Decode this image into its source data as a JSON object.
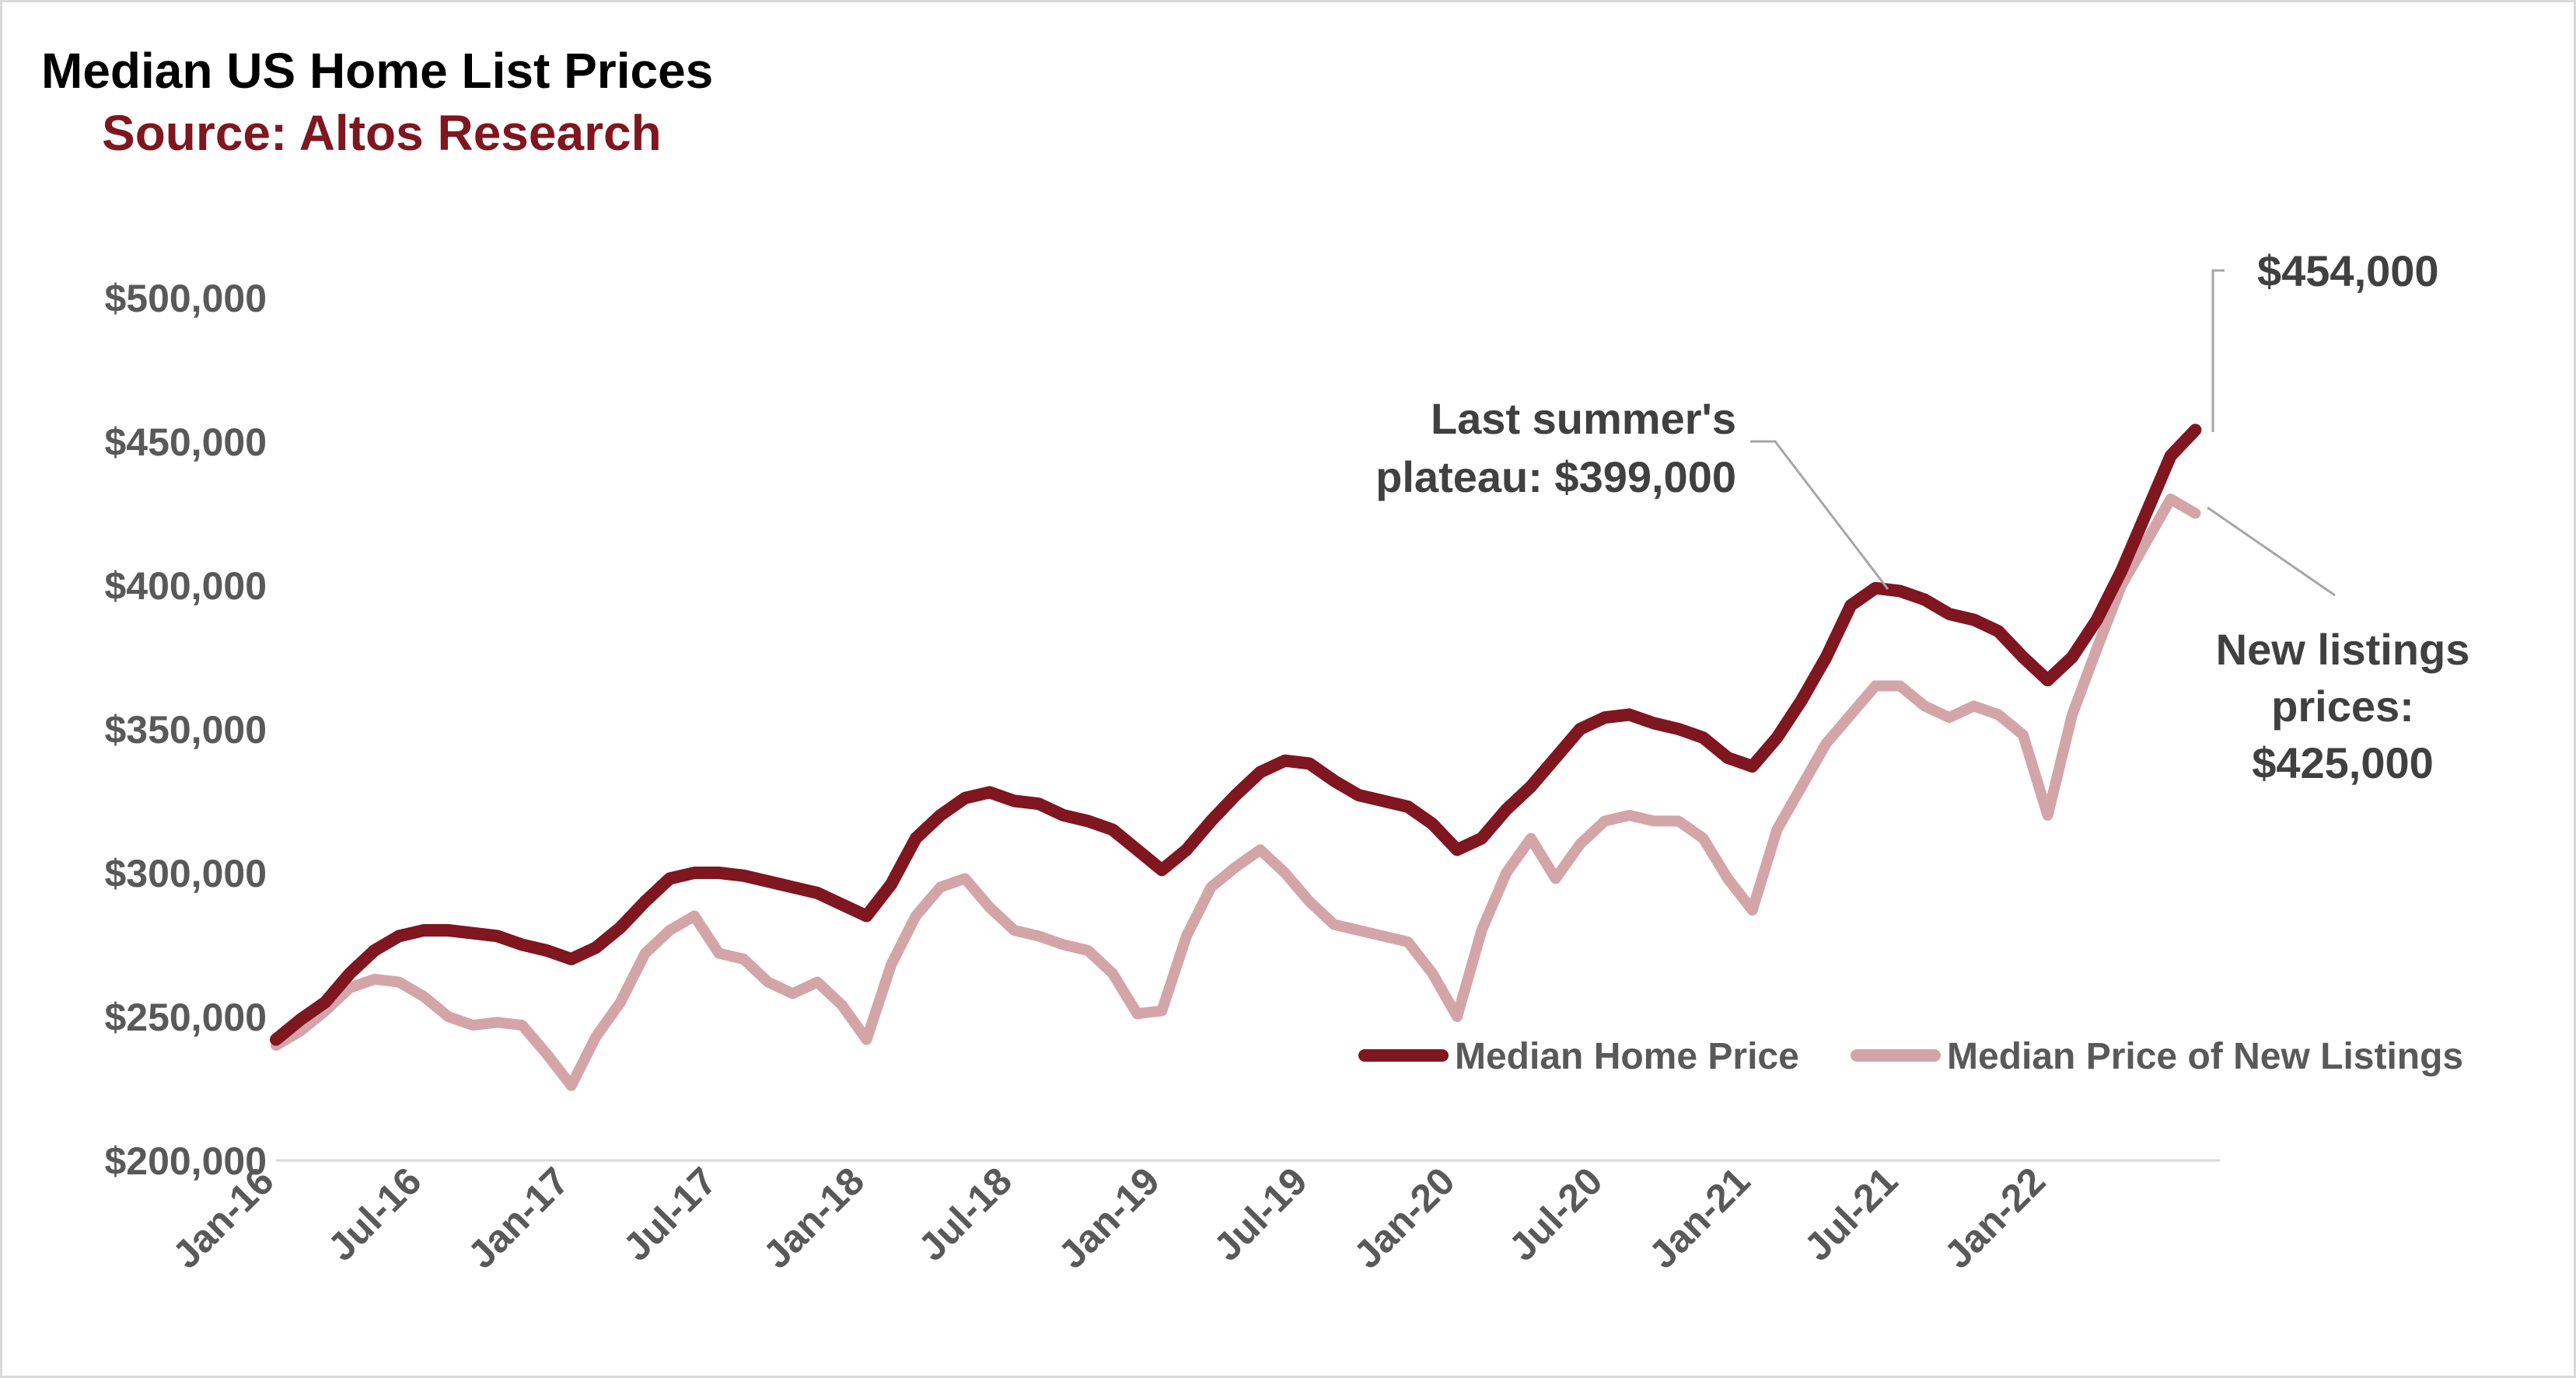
{
  "chart_data": {
    "type": "line",
    "title": "Median US Home List Prices",
    "subtitle": "Source: Altos Research",
    "xlabel": "",
    "ylabel": "",
    "x_tick_labels": [
      "Jan-16",
      "Jul-16",
      "Jan-17",
      "Jul-17",
      "Jan-18",
      "Jul-18",
      "Jan-19",
      "Jul-19",
      "Jan-20",
      "Jul-20",
      "Jan-21",
      "Jul-21",
      "Jan-22"
    ],
    "y_tick_labels": [
      "$200,000",
      "$250,000",
      "$300,000",
      "$350,000",
      "$400,000",
      "$450,000",
      "$500,000"
    ],
    "y_ticks": [
      200000,
      250000,
      300000,
      350000,
      400000,
      450000,
      500000
    ],
    "ylim": [
      200000,
      500000
    ],
    "xlim": [
      "2016-01",
      "2022-08"
    ],
    "grid": false,
    "legend": "bottom-right",
    "x": [
      "2016-01",
      "2016-02",
      "2016-03",
      "2016-04",
      "2016-05",
      "2016-06",
      "2016-07",
      "2016-08",
      "2016-09",
      "2016-10",
      "2016-11",
      "2016-12",
      "2017-01",
      "2017-02",
      "2017-03",
      "2017-04",
      "2017-05",
      "2017-06",
      "2017-07",
      "2017-08",
      "2017-09",
      "2017-10",
      "2017-11",
      "2017-12",
      "2018-01",
      "2018-02",
      "2018-03",
      "2018-04",
      "2018-05",
      "2018-06",
      "2018-07",
      "2018-08",
      "2018-09",
      "2018-10",
      "2018-11",
      "2018-12",
      "2019-01",
      "2019-02",
      "2019-03",
      "2019-04",
      "2019-05",
      "2019-06",
      "2019-07",
      "2019-08",
      "2019-09",
      "2019-10",
      "2019-11",
      "2019-12",
      "2020-01",
      "2020-02",
      "2020-03",
      "2020-04",
      "2020-05",
      "2020-06",
      "2020-07",
      "2020-08",
      "2020-09",
      "2020-10",
      "2020-11",
      "2020-12",
      "2021-01",
      "2021-02",
      "2021-03",
      "2021-04",
      "2021-05",
      "2021-06",
      "2021-07",
      "2021-08",
      "2021-09",
      "2021-10",
      "2021-11",
      "2021-12",
      "2022-01",
      "2022-02",
      "2022-03",
      "2022-04",
      "2022-05",
      "2022-06",
      "2022-07"
    ],
    "series": [
      {
        "name": "Median Home Price",
        "color": "#7f1620",
        "values": [
          242000,
          249000,
          255000,
          265000,
          273000,
          278000,
          280000,
          280000,
          279000,
          278000,
          275000,
          273000,
          270000,
          274000,
          281000,
          290000,
          298000,
          300000,
          300000,
          299000,
          297000,
          295000,
          293000,
          289000,
          285000,
          296000,
          312000,
          320000,
          326000,
          328000,
          325000,
          324000,
          320000,
          318000,
          315000,
          308000,
          301000,
          308000,
          318000,
          327000,
          335000,
          339000,
          338000,
          332000,
          327000,
          325000,
          323000,
          317000,
          308000,
          312000,
          322000,
          330000,
          340000,
          350000,
          354000,
          355000,
          352000,
          350000,
          347000,
          340000,
          337000,
          347000,
          360000,
          375000,
          393000,
          399000,
          398000,
          395000,
          390000,
          388000,
          384000,
          375000,
          367000,
          375000,
          388000,
          405000,
          425000,
          445000,
          454000
        ]
      },
      {
        "name": "Median Price of New Listings",
        "color": "#d4a5a8",
        "values": [
          240000,
          245000,
          252000,
          260000,
          263000,
          262000,
          257000,
          250000,
          247000,
          248000,
          247000,
          237000,
          226000,
          243000,
          255000,
          272000,
          280000,
          285000,
          272000,
          270000,
          262000,
          258000,
          262000,
          254000,
          242000,
          268000,
          285000,
          295000,
          298000,
          288000,
          280000,
          278000,
          275000,
          273000,
          265000,
          251000,
          252000,
          278000,
          295000,
          302000,
          308000,
          300000,
          290000,
          282000,
          280000,
          278000,
          276000,
          265000,
          250000,
          280000,
          300000,
          312000,
          298000,
          310000,
          318000,
          320000,
          318000,
          318000,
          312000,
          298000,
          287000,
          315000,
          330000,
          345000,
          355000,
          365000,
          365000,
          358000,
          354000,
          358000,
          355000,
          348000,
          320000,
          355000,
          378000,
          400000,
          415000,
          430000,
          425000
        ]
      }
    ],
    "annotations": [
      {
        "line1": "Last summer's",
        "line2": "plateau:  $399,000"
      },
      {
        "line1": "$454,000"
      },
      {
        "line1": "New listings",
        "line2": "prices:",
        "line3": "$425,000"
      }
    ]
  }
}
